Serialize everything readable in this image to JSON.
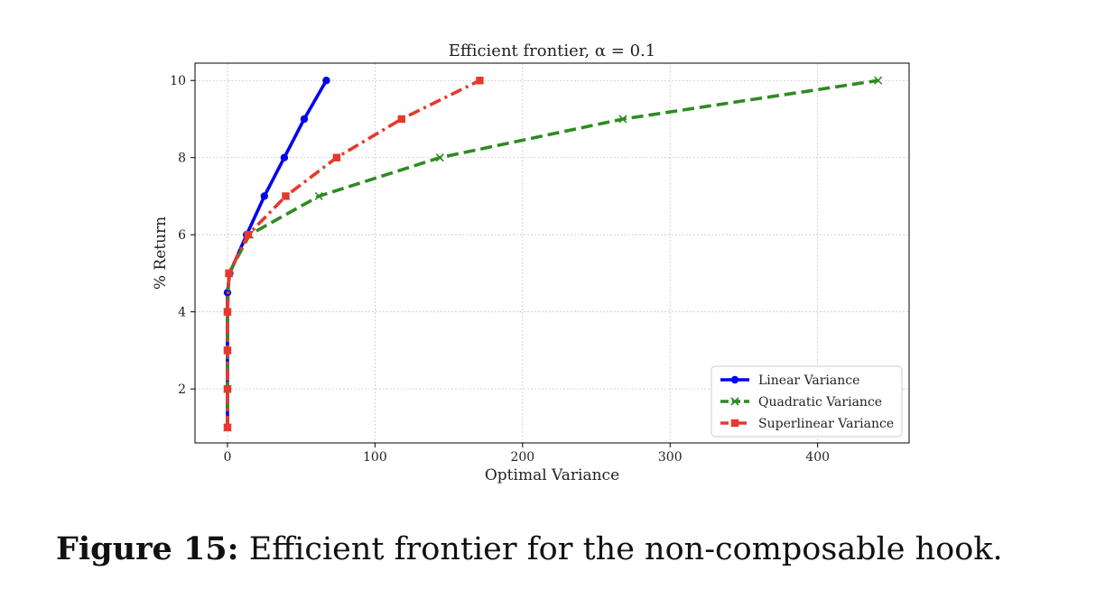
{
  "caption": {
    "label": "Figure 15:",
    "text": "Efficient frontier for the non-composable hook."
  },
  "chart_data": {
    "type": "line",
    "title": "Efficient frontier, α = 0.1",
    "xlabel": "Optimal Variance",
    "ylabel": "% Return",
    "xlim": [
      -22,
      462
    ],
    "ylim": [
      0.6,
      10.45
    ],
    "xticks": [
      0,
      100,
      200,
      300,
      400
    ],
    "yticks": [
      2,
      4,
      6,
      8,
      10
    ],
    "grid": true,
    "legend_position": "lower-right",
    "series": [
      {
        "name": "Linear Variance",
        "color": "#0000ee",
        "linestyle": "solid",
        "marker": "circle",
        "x": [
          0,
          0,
          0,
          0,
          0,
          1.5,
          13,
          25,
          38.5,
          52,
          67
        ],
        "y": [
          1,
          2,
          3,
          4,
          4.5,
          5,
          6,
          7,
          8,
          9,
          10
        ]
      },
      {
        "name": "Quadratic Variance",
        "color": "#2e8b22",
        "linestyle": "dashed",
        "marker": "x",
        "x": [
          0,
          0,
          0,
          0,
          1,
          15,
          62,
          144,
          268,
          441
        ],
        "y": [
          1,
          2,
          3,
          4,
          5,
          6,
          7,
          8,
          9,
          10
        ]
      },
      {
        "name": "Superlinear Variance",
        "color": "#e8382c",
        "linestyle": "dashdot",
        "marker": "square",
        "x": [
          0,
          0,
          0,
          0,
          1,
          14,
          39.5,
          74,
          118,
          171
        ],
        "y": [
          1,
          2,
          3,
          4,
          5,
          6,
          7,
          8,
          9,
          10
        ]
      }
    ]
  }
}
